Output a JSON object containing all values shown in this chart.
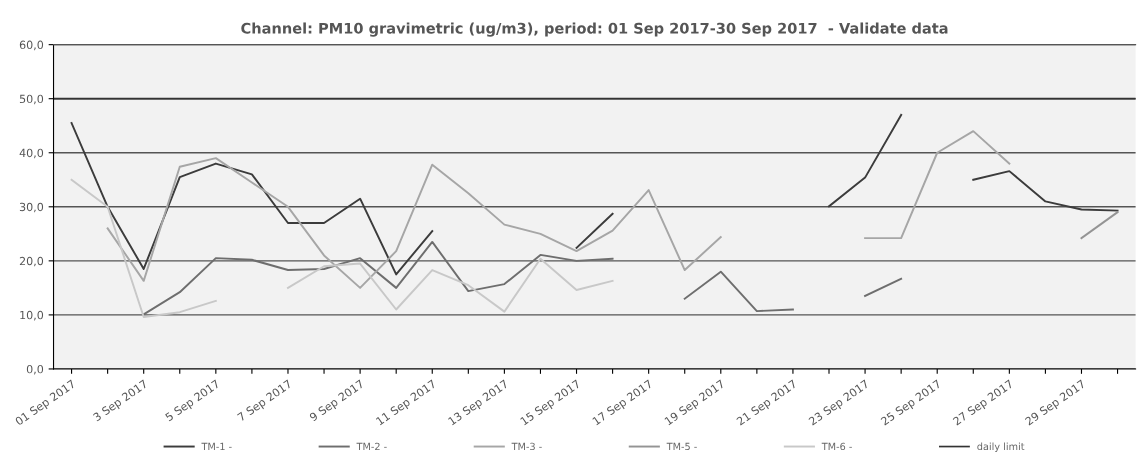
{
  "chart_data": {
    "type": "line",
    "title": "Channel: PM10 gravimetric (ug/m3), period: 01 Sep 2017-30 Sep 2017  - Validate data",
    "categories": [
      "01 Sep 2017",
      null,
      "3 Sep 2017",
      null,
      "5 Sep 2017",
      null,
      "7 Sep 2017",
      null,
      "9 Sep 2017",
      null,
      "11 Sep 2017",
      null,
      "13 Sep 2017",
      null,
      "15 Sep 2017",
      null,
      "17 Sep 2017",
      null,
      "19 Sep 2017",
      null,
      "21 Sep 2017",
      null,
      "23 Sep 2017",
      null,
      "25 Sep 2017",
      null,
      "27 Sep 2017",
      null,
      "29 Sep 2017",
      null
    ],
    "series": [
      {
        "name": "TM-1 -",
        "color": "#3c3c3c",
        "values": [
          45.5,
          30,
          18.5,
          35.5,
          38,
          36,
          27,
          27,
          31.5,
          17.5,
          25.5,
          null,
          null,
          null,
          22.4,
          28.7,
          null,
          null,
          null,
          null,
          null,
          30.1,
          35.4,
          47,
          null,
          35,
          36.6,
          31,
          29.5,
          29.3
        ]
      },
      {
        "name": "TM-2 -",
        "color": "#6e6e6e",
        "values": [
          null,
          null,
          10.1,
          14.2,
          20.5,
          20.2,
          18.3,
          18.5,
          20.5,
          15,
          23.5,
          14.4,
          15.7,
          21.1,
          20,
          20.4,
          null,
          13,
          18,
          10.7,
          11,
          null,
          13.5,
          16.7,
          null,
          null,
          null,
          null,
          null,
          null
        ]
      },
      {
        "name": "TM-3 -",
        "color": "#a6a6a6",
        "values": [
          null,
          26,
          16.3,
          37.4,
          39,
          34.5,
          30,
          21,
          15,
          21.8,
          37.8,
          32.5,
          26.7,
          25,
          21.8,
          25.6,
          33.1,
          18.3,
          24.4,
          null,
          null,
          null,
          24.2,
          24.2,
          40,
          44,
          38,
          null,
          null,
          null
        ]
      },
      {
        "name": "TM-5 -",
        "color": "#949494",
        "values": [
          null,
          null,
          null,
          null,
          null,
          null,
          null,
          null,
          null,
          null,
          null,
          null,
          null,
          null,
          null,
          null,
          null,
          null,
          null,
          null,
          null,
          null,
          null,
          null,
          null,
          null,
          null,
          null,
          24.2,
          29
        ]
      },
      {
        "name": "TM-6 -",
        "color": "#c8c8c8",
        "values": [
          35,
          30,
          9.6,
          10.5,
          12.6,
          null,
          15,
          19,
          19.5,
          11,
          18.3,
          15.5,
          10.6,
          20.4,
          14.6,
          16.3,
          null,
          null,
          null,
          null,
          null,
          null,
          null,
          null,
          null,
          null,
          null,
          null,
          null,
          null
        ]
      }
    ],
    "ref_lines": [
      {
        "axis": "y",
        "value": 50,
        "label": "daily limit",
        "color": "#333333",
        "line_style": "solid"
      }
    ],
    "ylim": [
      0,
      60
    ],
    "yticks": [
      {
        "value": 0,
        "label": "0,0"
      },
      {
        "value": 10,
        "label": "10,0"
      },
      {
        "value": 20,
        "label": "20,0"
      },
      {
        "value": 30,
        "label": "30,0"
      },
      {
        "value": 40,
        "label": "40,0"
      },
      {
        "value": 50,
        "label": "50,0"
      },
      {
        "value": 60,
        "label": "60,0"
      }
    ],
    "grid": "y",
    "legend": "bottom",
    "marker": "none",
    "line_style": "solid"
  }
}
